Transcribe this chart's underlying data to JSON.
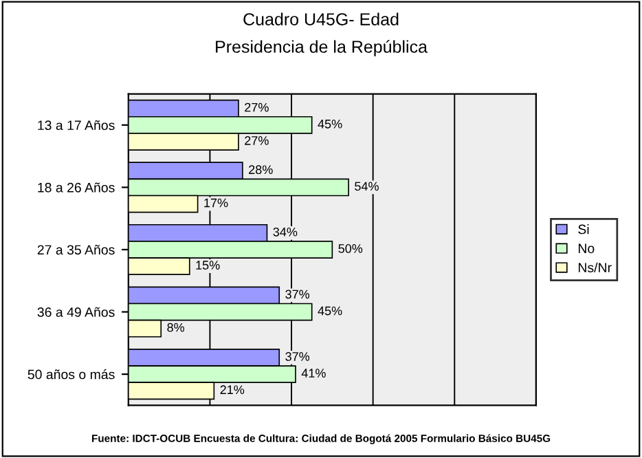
{
  "chart_data": {
    "type": "bar",
    "orientation": "horizontal",
    "title": "Cuadro U45G- Edad",
    "subtitle": "Presidencia de la República",
    "categories": [
      "13 a 17 Años",
      "18 a 26 Años",
      "27 a 35 Años",
      "36 a 49 Años",
      "50 años o más"
    ],
    "series": [
      {
        "name": "Si",
        "color": "#9999ff",
        "values": [
          27,
          28,
          34,
          37,
          37
        ],
        "value_labels": [
          "27%",
          "28%",
          "34%",
          "37%",
          "37%"
        ]
      },
      {
        "name": "No",
        "color": "#ccffcc",
        "values": [
          45,
          54,
          50,
          45,
          41
        ],
        "value_labels": [
          "45%",
          "54%",
          "50%",
          "45%",
          "41%"
        ]
      },
      {
        "name": "Ns/Nr",
        "color": "#ffffcc",
        "values": [
          27,
          17,
          15,
          8,
          21
        ],
        "value_labels": [
          "27%",
          "17%",
          "15%",
          "8%",
          "21%"
        ]
      }
    ],
    "xlim": [
      0,
      100
    ],
    "xticks": [
      {
        "value": 0,
        "label": null
      },
      {
        "value": 20,
        "label": null
      },
      {
        "value": 40,
        "label": null
      },
      {
        "value": 60,
        "label": null
      },
      {
        "value": 80,
        "label": null
      },
      {
        "value": 100,
        "label": null
      }
    ],
    "tick_labels": "y",
    "grid": "x",
    "legend": "right",
    "annotations": [
      "Fuente: IDCT-OCUB Encuesta de Cultura: Ciudad de Bogotá 2005 Formulario Básico BU45G"
    ]
  }
}
